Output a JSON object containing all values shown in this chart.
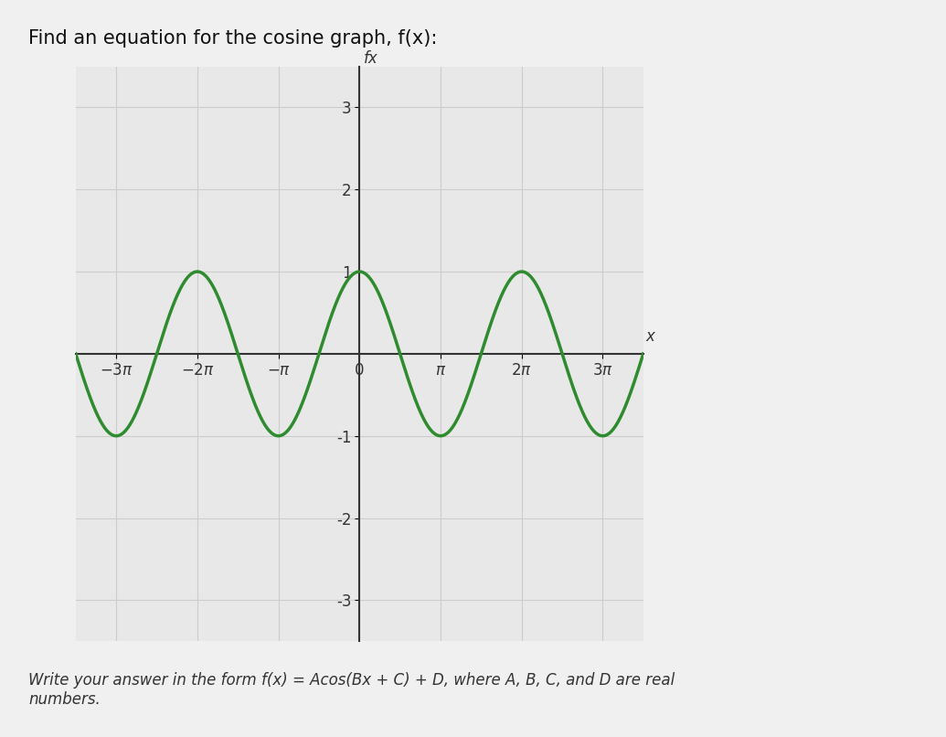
{
  "title": "Find an equation for the cosine graph, f(x):",
  "subtitle": "Write your answer in the form f(x) = A​cos​(Bx + C) + D, where A, B, C, and D are real\nnumbers.",
  "A": 1,
  "B": 1,
  "C": 0,
  "D": 0,
  "x_min": -3.5,
  "x_max": 3.5,
  "y_min": -3.5,
  "y_max": 3.5,
  "x_ticks_pi": [
    -3,
    -2,
    -1,
    0,
    1,
    2,
    3
  ],
  "y_ticks": [
    -3,
    -2,
    -1,
    1,
    2,
    3
  ],
  "curve_color": "#2e8b2e",
  "curve_linewidth": 2.5,
  "grid_color": "#cccccc",
  "axis_color": "#333333",
  "background_color": "#e8e8e8",
  "title_fontsize": 15,
  "subtitle_fontsize": 12,
  "tick_label_fontsize": 12,
  "axis_label_color": "#333333",
  "fig_bg_color": "#f0f0f0"
}
